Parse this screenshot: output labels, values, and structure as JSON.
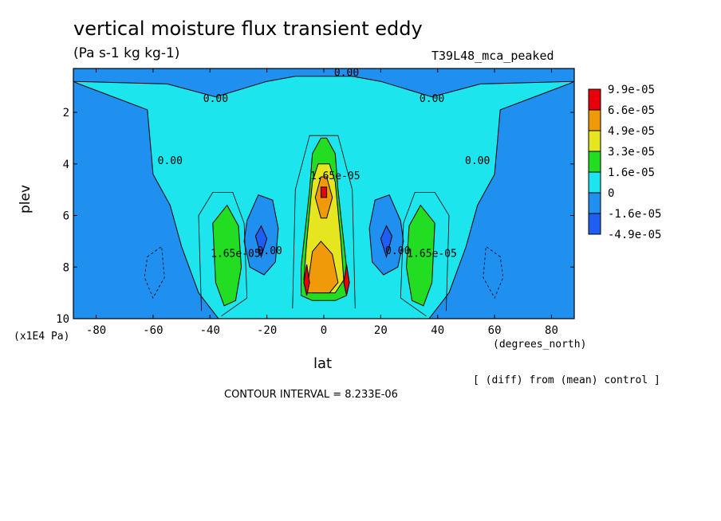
{
  "chart_data": {
    "type": "heatmap",
    "title": "vertical moisture flux transient eddy",
    "units": "(Pa s-1 kg kg-1)",
    "experiment": "T39L48_mca_peaked",
    "xlabel": "lat",
    "x_units": "(degrees_north)",
    "ylabel": "plev",
    "y_units": "(x1E4 Pa)",
    "xlim": [
      -88,
      88
    ],
    "ylim": [
      10,
      0.3
    ],
    "x_ticks": [
      "-80",
      "-60",
      "-40",
      "-20",
      "0",
      "20",
      "40",
      "60",
      "80"
    ],
    "x_tick_values": [
      -80,
      -60,
      -40,
      -20,
      0,
      20,
      40,
      60,
      80
    ],
    "y_ticks": [
      "2",
      "4",
      "6",
      "8",
      "10"
    ],
    "y_tick_values": [
      2,
      4,
      6,
      8,
      10
    ],
    "legend": {
      "position": "right",
      "levels": [
        "9.9e-05",
        "6.6e-05",
        "4.9e-05",
        "3.3e-05",
        "1.6e-05",
        "0",
        "-1.6e-05",
        "-4.9e-05"
      ],
      "colors": [
        "#e8000b",
        "#f09a0a",
        "#e6e620",
        "#22dd22",
        "#1ce5ee",
        "#1f8ff0",
        "#1f5ef5"
      ]
    },
    "contour_labels": [
      {
        "text": "0.00",
        "lat": 8,
        "plev": 0.6
      },
      {
        "text": "0.00",
        "lat": -38,
        "plev": 1.6
      },
      {
        "text": "0.00",
        "lat": 38,
        "plev": 1.6
      },
      {
        "text": "0.00",
        "lat": -54,
        "plev": 4.0
      },
      {
        "text": "0.00",
        "lat": 54,
        "plev": 4.0
      },
      {
        "text": "0.00",
        "lat": -19,
        "plev": 7.5
      },
      {
        "text": "0.00",
        "lat": 26,
        "plev": 7.5
      },
      {
        "text": "1.65e-05",
        "lat": -31,
        "plev": 7.6
      },
      {
        "text": "1.65e-05",
        "lat": 38,
        "plev": 7.6
      },
      {
        "text": "1.65e-05",
        "lat": 4,
        "plev": 4.6
      }
    ],
    "note": "[ (diff) from (mean) control ]",
    "contour_interval": "CONTOUR INTERVAL = 8.233E-06"
  },
  "colors": {
    "background": "#ffffff",
    "frame": "#000000"
  }
}
